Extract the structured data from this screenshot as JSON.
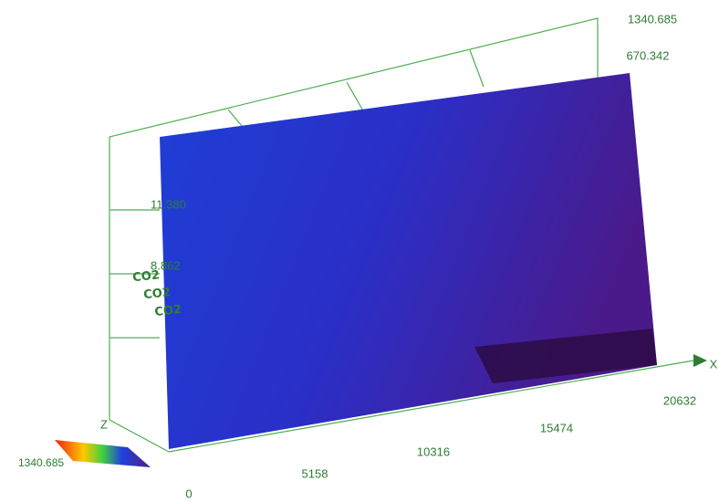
{
  "surface_text": "CO2",
  "x_axis": {
    "label": "X",
    "ticks": [
      "0",
      "5158",
      "10316",
      "15474",
      "20632"
    ]
  },
  "z_axis": {
    "label": "Z"
  },
  "y_axis": {
    "ticks": [
      "1340.685",
      "670.342"
    ]
  },
  "side_labels": [
    "11.380",
    "8.862"
  ],
  "legend": {
    "label": "1340.685"
  }
}
